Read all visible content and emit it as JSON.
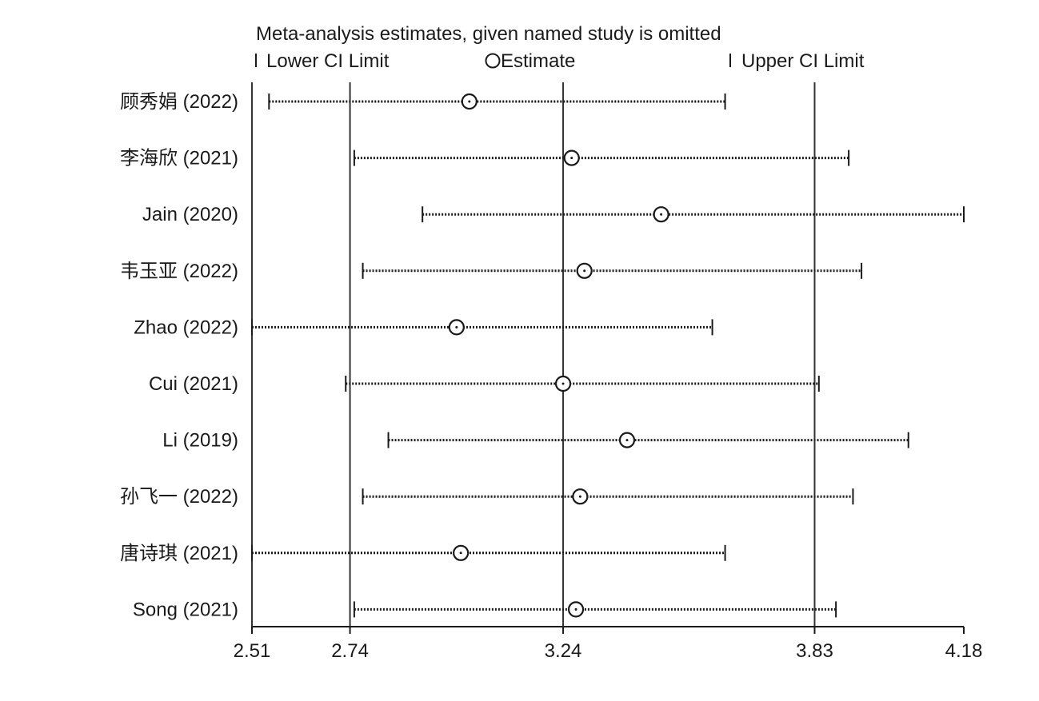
{
  "chart_data": {
    "type": "forest",
    "title": "Meta-analysis estimates, given named study is omitted",
    "legend": {
      "lower": "Lower CI Limit",
      "estimate": "Estimate",
      "upper": "Upper CI Limit",
      "placement": "top"
    },
    "xlim": [
      2.51,
      4.18
    ],
    "xticks": [
      2.51,
      2.74,
      3.24,
      3.83,
      4.18
    ],
    "xtick_labels": [
      "2.51",
      "2.74",
      "3.24",
      "3.83",
      "4.18"
    ],
    "reference_lines": [
      2.51,
      2.74,
      3.24,
      3.83
    ],
    "studies": [
      {
        "label": "顾秀娟 (2022)",
        "lower": 2.55,
        "estimate": 3.02,
        "upper": 3.62
      },
      {
        "label": "李海欣 (2021)",
        "lower": 2.75,
        "estimate": 3.26,
        "upper": 3.91
      },
      {
        "label": "Jain (2020)",
        "lower": 2.91,
        "estimate": 3.47,
        "upper": 4.18
      },
      {
        "label": "韦玉亚 (2022)",
        "lower": 2.77,
        "estimate": 3.29,
        "upper": 3.94
      },
      {
        "label": "Zhao (2022)",
        "lower": 2.51,
        "estimate": 2.99,
        "upper": 3.59
      },
      {
        "label": "Cui (2021)",
        "lower": 2.73,
        "estimate": 3.24,
        "upper": 3.84
      },
      {
        "label": "Li (2019)",
        "lower": 2.83,
        "estimate": 3.39,
        "upper": 4.05
      },
      {
        "label": "孙飞一 (2022)",
        "lower": 2.77,
        "estimate": 3.28,
        "upper": 3.92
      },
      {
        "label": "唐诗琪 (2021)",
        "lower": 2.51,
        "estimate": 3.0,
        "upper": 3.62
      },
      {
        "label": "Song (2021)",
        "lower": 2.75,
        "estimate": 3.27,
        "upper": 3.88
      }
    ]
  }
}
